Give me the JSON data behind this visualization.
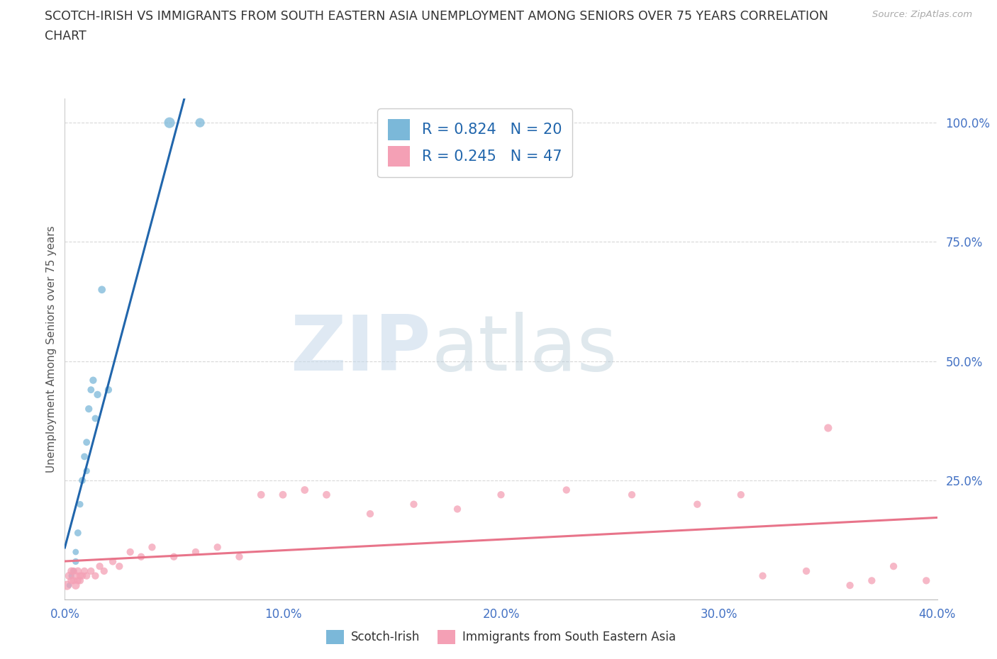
{
  "title_line1": "SCOTCH-IRISH VS IMMIGRANTS FROM SOUTH EASTERN ASIA UNEMPLOYMENT AMONG SENIORS OVER 75 YEARS CORRELATION",
  "title_line2": "CHART",
  "source": "Source: ZipAtlas.com",
  "ylabel": "Unemployment Among Seniors over 75 years",
  "xlim": [
    0.0,
    0.4
  ],
  "ylim": [
    0.0,
    1.05
  ],
  "xticks": [
    0.0,
    0.1,
    0.2,
    0.3,
    0.4
  ],
  "xtick_labels": [
    "0.0%",
    "10.0%",
    "20.0%",
    "30.0%",
    "40.0%"
  ],
  "yticks": [
    0.25,
    0.5,
    0.75,
    1.0
  ],
  "ytick_labels": [
    "25.0%",
    "50.0%",
    "75.0%",
    "100.0%"
  ],
  "blue_color": "#7bb8d9",
  "pink_color": "#f4a0b5",
  "trendline_blue": "#2166ac",
  "trendline_pink": "#e8748a",
  "R_blue": 0.824,
  "N_blue": 20,
  "R_pink": 0.245,
  "N_pink": 47,
  "watermark_top": "ZIP",
  "watermark_bot": "atlas",
  "watermark_color_top": "#b8cfe0",
  "watermark_color_bot": "#a0c0d8",
  "scotch_irish_x": [
    0.002,
    0.003,
    0.004,
    0.005,
    0.005,
    0.006,
    0.007,
    0.008,
    0.009,
    0.01,
    0.01,
    0.011,
    0.012,
    0.013,
    0.014,
    0.015,
    0.017,
    0.02,
    0.048,
    0.062
  ],
  "scotch_irish_y": [
    0.03,
    0.05,
    0.06,
    0.08,
    0.1,
    0.14,
    0.2,
    0.25,
    0.3,
    0.27,
    0.33,
    0.4,
    0.44,
    0.46,
    0.38,
    0.43,
    0.65,
    0.44,
    1.0,
    1.0
  ],
  "scotch_irish_size": [
    30,
    35,
    40,
    45,
    40,
    50,
    45,
    50,
    50,
    45,
    50,
    55,
    50,
    55,
    50,
    55,
    60,
    55,
    120,
    90
  ],
  "sea_x": [
    0.001,
    0.002,
    0.003,
    0.003,
    0.004,
    0.004,
    0.005,
    0.005,
    0.006,
    0.006,
    0.007,
    0.007,
    0.008,
    0.009,
    0.01,
    0.012,
    0.014,
    0.016,
    0.018,
    0.022,
    0.025,
    0.03,
    0.035,
    0.04,
    0.05,
    0.06,
    0.07,
    0.08,
    0.09,
    0.1,
    0.11,
    0.12,
    0.14,
    0.16,
    0.18,
    0.2,
    0.23,
    0.26,
    0.29,
    0.31,
    0.32,
    0.34,
    0.35,
    0.36,
    0.37,
    0.38,
    0.395
  ],
  "sea_y": [
    0.03,
    0.05,
    0.04,
    0.06,
    0.04,
    0.06,
    0.03,
    0.05,
    0.04,
    0.06,
    0.05,
    0.04,
    0.05,
    0.06,
    0.05,
    0.06,
    0.05,
    0.07,
    0.06,
    0.08,
    0.07,
    0.1,
    0.09,
    0.11,
    0.09,
    0.1,
    0.11,
    0.09,
    0.22,
    0.22,
    0.23,
    0.22,
    0.18,
    0.2,
    0.19,
    0.22,
    0.23,
    0.22,
    0.2,
    0.22,
    0.05,
    0.06,
    0.36,
    0.03,
    0.04,
    0.07,
    0.04
  ],
  "sea_size": [
    90,
    70,
    60,
    60,
    55,
    55,
    70,
    65,
    55,
    60,
    55,
    55,
    55,
    55,
    55,
    55,
    55,
    55,
    55,
    55,
    55,
    55,
    55,
    55,
    55,
    55,
    55,
    55,
    60,
    60,
    60,
    60,
    55,
    55,
    55,
    55,
    55,
    55,
    55,
    55,
    55,
    55,
    65,
    55,
    55,
    55,
    55
  ],
  "background_color": "#ffffff",
  "grid_color": "#d8d8d8",
  "tick_color": "#4472c4",
  "title_color": "#333333",
  "label_color": "#555555"
}
